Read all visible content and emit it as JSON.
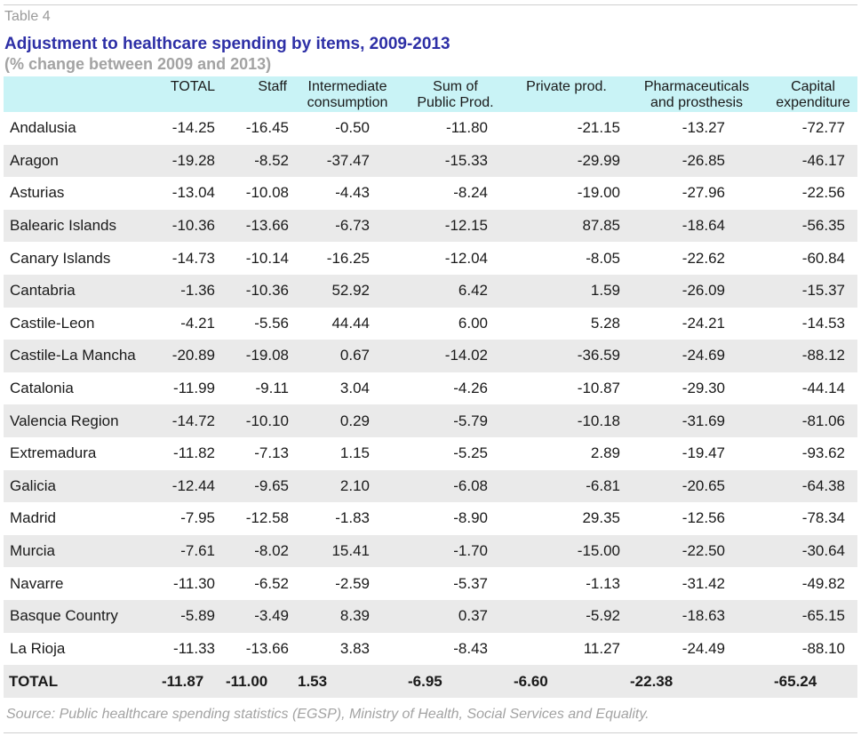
{
  "table_label": "Table 4",
  "title": "Adjustment to healthcare spending by items, 2009-2013",
  "subtitle": "(% change between 2009 and 2013)",
  "headers": {
    "total": "TOTAL",
    "staff": "Staff",
    "intermediate_1": "Intermediate",
    "intermediate_2": "consumption",
    "sum_1": "Sum of",
    "sum_2": "Public Prod.",
    "private": "Private prod.",
    "pharma_1": "Pharmaceuticals",
    "pharma_2": "and prosthesis",
    "capital_1": "Capital",
    "capital_2": "expenditure"
  },
  "rows": [
    {
      "region": "Andalusia",
      "total": "-14.25",
      "staff": "-16.45",
      "intermediate": "-0.50",
      "sum_public": "-11.80",
      "private": "-21.15",
      "pharma": "-13.27",
      "capital": "-72.77"
    },
    {
      "region": "Aragon",
      "total": "-19.28",
      "staff": "-8.52",
      "intermediate": "-37.47",
      "sum_public": "-15.33",
      "private": "-29.99",
      "pharma": "-26.85",
      "capital": "-46.17"
    },
    {
      "region": "Asturias",
      "total": "-13.04",
      "staff": "-10.08",
      "intermediate": "-4.43",
      "sum_public": "-8.24",
      "private": "-19.00",
      "pharma": "-27.96",
      "capital": "-22.56"
    },
    {
      "region": "Balearic Islands",
      "total": "-10.36",
      "staff": "-13.66",
      "intermediate": "-6.73",
      "sum_public": "-12.15",
      "private": "87.85",
      "pharma": "-18.64",
      "capital": "-56.35"
    },
    {
      "region": "Canary Islands",
      "total": "-14.73",
      "staff": "-10.14",
      "intermediate": "-16.25",
      "sum_public": "-12.04",
      "private": "-8.05",
      "pharma": "-22.62",
      "capital": "-60.84"
    },
    {
      "region": "Cantabria",
      "total": "-1.36",
      "staff": "-10.36",
      "intermediate": "52.92",
      "sum_public": "6.42",
      "private": "1.59",
      "pharma": "-26.09",
      "capital": "-15.37"
    },
    {
      "region": "Castile-Leon",
      "total": "-4.21",
      "staff": "-5.56",
      "intermediate": "44.44",
      "sum_public": "6.00",
      "private": "5.28",
      "pharma": "-24.21",
      "capital": "-14.53"
    },
    {
      "region": "Castile-La Mancha",
      "total": "-20.89",
      "staff": "-19.08",
      "intermediate": "0.67",
      "sum_public": "-14.02",
      "private": "-36.59",
      "pharma": "-24.69",
      "capital": "-88.12"
    },
    {
      "region": "Catalonia",
      "total": "-11.99",
      "staff": "-9.11",
      "intermediate": "3.04",
      "sum_public": "-4.26",
      "private": "-10.87",
      "pharma": "-29.30",
      "capital": "-44.14"
    },
    {
      "region": "Valencia Region",
      "total": "-14.72",
      "staff": "-10.10",
      "intermediate": "0.29",
      "sum_public": "-5.79",
      "private": "-10.18",
      "pharma": "-31.69",
      "capital": "-81.06"
    },
    {
      "region": "Extremadura",
      "total": "-11.82",
      "staff": "-7.13",
      "intermediate": "1.15",
      "sum_public": "-5.25",
      "private": "2.89",
      "pharma": "-19.47",
      "capital": "-93.62"
    },
    {
      "region": "Galicia",
      "total": "-12.44",
      "staff": "-9.65",
      "intermediate": "2.10",
      "sum_public": "-6.08",
      "private": "-6.81",
      "pharma": "-20.65",
      "capital": "-64.38"
    },
    {
      "region": "Madrid",
      "total": "-7.95",
      "staff": "-12.58",
      "intermediate": "-1.83",
      "sum_public": "-8.90",
      "private": "29.35",
      "pharma": "-12.56",
      "capital": "-78.34"
    },
    {
      "region": "Murcia",
      "total": "-7.61",
      "staff": "-8.02",
      "intermediate": "15.41",
      "sum_public": "-1.70",
      "private": "-15.00",
      "pharma": "-22.50",
      "capital": "-30.64"
    },
    {
      "region": "Navarre",
      "total": "-11.30",
      "staff": "-6.52",
      "intermediate": "-2.59",
      "sum_public": "-5.37",
      "private": "-1.13",
      "pharma": "-31.42",
      "capital": "-49.82"
    },
    {
      "region": "Basque Country",
      "total": "-5.89",
      "staff": "-3.49",
      "intermediate": "8.39",
      "sum_public": "0.37",
      "private": "-5.92",
      "pharma": "-18.63",
      "capital": "-65.15"
    },
    {
      "region": "La Rioja",
      "total": "-11.33",
      "staff": "-13.66",
      "intermediate": "3.83",
      "sum_public": "-8.43",
      "private": "11.27",
      "pharma": "-24.49",
      "capital": "-88.10"
    }
  ],
  "total_row": {
    "region": "TOTAL",
    "total": "-11.87",
    "staff": "-11.00",
    "intermediate": "1.53",
    "sum_public": "-6.95",
    "private": "-6.60",
    "pharma": "-22.38",
    "capital": "-65.24"
  },
  "source": "Source: Public healthcare spending statistics (EGSP), Ministry of Health, Social Services and Equality.",
  "colors": {
    "title": "#2d2fa6",
    "header_bg": "#c9f3f6",
    "stripe": "#eaeaea",
    "muted": "#a3a3a3"
  }
}
